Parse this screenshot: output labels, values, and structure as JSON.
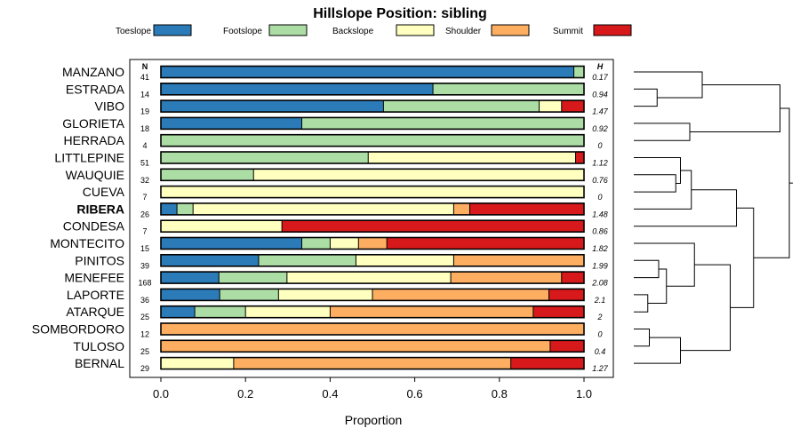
{
  "chart_data": {
    "type": "stacked-bar",
    "title": "Hillslope Position: sibling",
    "xlabel": "Proportion",
    "xlim": [
      0,
      1
    ],
    "xticks": [
      "0.0",
      "0.2",
      "0.4",
      "0.6",
      "0.8",
      "1.0"
    ],
    "n_header": "N",
    "h_header": "H",
    "highlight": "RIBERA",
    "legend": [
      {
        "name": "Toeslope",
        "color": "#2b7bb9"
      },
      {
        "name": "Footslope",
        "color": "#abdda4"
      },
      {
        "name": "Backslope",
        "color": "#ffffbf"
      },
      {
        "name": "Shoulder",
        "color": "#fdae61"
      },
      {
        "name": "Summit",
        "color": "#d7191c"
      }
    ],
    "rows": [
      {
        "name": "MANZANO",
        "n": "41",
        "h": "0.17",
        "values": [
          0.976,
          0.024,
          0,
          0,
          0
        ]
      },
      {
        "name": "ESTRADA",
        "n": "14",
        "h": "0.94",
        "values": [
          0.643,
          0.357,
          0,
          0,
          0
        ]
      },
      {
        "name": "VIBO",
        "n": "19",
        "h": "1.47",
        "values": [
          0.526,
          0.368,
          0.053,
          0,
          0.053
        ]
      },
      {
        "name": "GLORIETA",
        "n": "18",
        "h": "0.92",
        "values": [
          0.333,
          0.667,
          0,
          0,
          0
        ]
      },
      {
        "name": "HERRADA",
        "n": "4",
        "h": "0",
        "values": [
          0,
          1,
          0,
          0,
          0
        ]
      },
      {
        "name": "LITTLEPINE",
        "n": "51",
        "h": "1.12",
        "values": [
          0,
          0.49,
          0.49,
          0,
          0.02
        ]
      },
      {
        "name": "WAUQUIE",
        "n": "32",
        "h": "0.76",
        "values": [
          0,
          0.219,
          0.781,
          0,
          0
        ]
      },
      {
        "name": "CUEVA",
        "n": "7",
        "h": "0",
        "values": [
          0,
          0,
          1,
          0,
          0
        ]
      },
      {
        "name": "RIBERA",
        "n": "26",
        "h": "1.48",
        "values": [
          0.038,
          0.038,
          0.616,
          0.038,
          0.27
        ]
      },
      {
        "name": "CONDESA",
        "n": "7",
        "h": "0.86",
        "values": [
          0,
          0,
          0.286,
          0,
          0.714
        ]
      },
      {
        "name": "MONTECITO",
        "n": "15",
        "h": "1.82",
        "values": [
          0.333,
          0.067,
          0.067,
          0.067,
          0.466
        ]
      },
      {
        "name": "PINITOS",
        "n": "39",
        "h": "1.99",
        "values": [
          0.231,
          0.23,
          0.231,
          0.308,
          0
        ]
      },
      {
        "name": "MENEFEE",
        "n": "168",
        "h": "2.08",
        "values": [
          0.137,
          0.161,
          0.387,
          0.262,
          0.053
        ]
      },
      {
        "name": "LAPORTE",
        "n": "36",
        "h": "2.1",
        "values": [
          0.139,
          0.139,
          0.222,
          0.417,
          0.083
        ]
      },
      {
        "name": "ATARQUE",
        "n": "25",
        "h": "2",
        "values": [
          0.08,
          0.12,
          0.2,
          0.48,
          0.12
        ]
      },
      {
        "name": "SOMBORDORO",
        "n": "12",
        "h": "0",
        "values": [
          0,
          0,
          0,
          1,
          0
        ]
      },
      {
        "name": "TULOSO",
        "n": "25",
        "h": "0.4",
        "values": [
          0,
          0,
          0,
          0.92,
          0.08
        ]
      },
      {
        "name": "BERNAL",
        "n": "29",
        "h": "1.27",
        "values": [
          0,
          0,
          0.172,
          0.655,
          0.173
        ]
      }
    ],
    "dendrogram": {
      "type": "dendrogram",
      "leaf_order": [
        "MANZANO",
        "ESTRADA",
        "VIBO",
        "GLORIETA",
        "HERRADA",
        "LITTLEPINE",
        "WAUQUIE",
        "CUEVA",
        "RIBERA",
        "CONDESA",
        "MONTECITO",
        "PINITOS",
        "MENEFEE",
        "LAPORTE",
        "ATARQUE",
        "SOMBORDORO",
        "TULOSO",
        "BERNAL"
      ],
      "merges": [
        {
          "a": 1,
          "b": 2,
          "height": 0.15
        },
        {
          "a": 0,
          "b": "m0",
          "height": 0.44
        },
        {
          "a": 3,
          "b": 4,
          "height": 0.36
        },
        {
          "a": "m1",
          "b": "m2",
          "height": 0.94
        },
        {
          "a": 6,
          "b": 7,
          "height": 0.27
        },
        {
          "a": 5,
          "b": "m4",
          "height": 0.3
        },
        {
          "a": "m5",
          "b": 8,
          "height": 0.37
        },
        {
          "a": "m6",
          "b": 9,
          "height": 0.66
        },
        {
          "a": 11,
          "b": 12,
          "height": 0.16
        },
        {
          "a": 13,
          "b": 14,
          "height": 0.09
        },
        {
          "a": "m8",
          "b": "m9",
          "height": 0.21
        },
        {
          "a": "m10",
          "b": 10,
          "height": 0.39
        },
        {
          "a": 15,
          "b": 16,
          "height": 0.1
        },
        {
          "a": "m12",
          "b": 17,
          "height": 0.3
        },
        {
          "a": "m11",
          "b": "m13",
          "height": 0.62
        },
        {
          "a": "m7",
          "b": "m14",
          "height": 0.77
        },
        {
          "a": "m3",
          "b": "m15",
          "height": 1.0
        }
      ]
    }
  }
}
